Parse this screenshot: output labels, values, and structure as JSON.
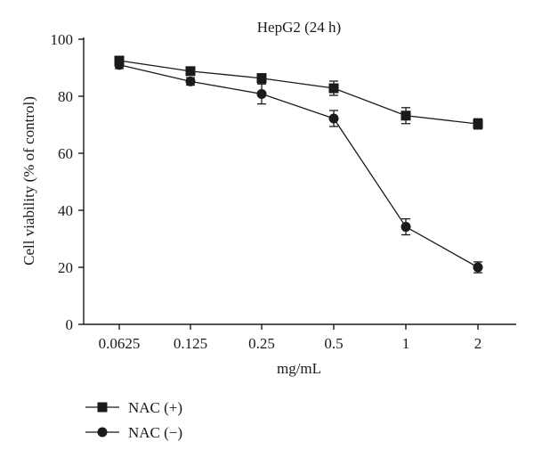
{
  "chart_data": {
    "type": "line",
    "title": "HepG2 (24 h)",
    "xlabel": "mg/mL",
    "ylabel": "Cell viability (% of control)",
    "categories": [
      "0.0625",
      "0.125",
      "0.25",
      "0.5",
      "1",
      "2"
    ],
    "ylim": [
      0,
      100
    ],
    "yticks": [
      "0",
      "20",
      "40",
      "60",
      "80",
      "100"
    ],
    "grid": false,
    "legend_position": "bottom-left",
    "series": [
      {
        "name": "NAC (+)",
        "marker": "square",
        "values": [
          92.5,
          88.8,
          86.3,
          82.8,
          73.2,
          70.3
        ],
        "errors": [
          1.2,
          1.3,
          1.6,
          2.5,
          2.8,
          1.8
        ]
      },
      {
        "name": "NAC (−)",
        "marker": "circle",
        "values": [
          91.0,
          85.2,
          80.8,
          72.2,
          34.2,
          20.0
        ],
        "errors": [
          1.3,
          1.3,
          3.5,
          2.8,
          2.8,
          1.9
        ]
      }
    ]
  }
}
